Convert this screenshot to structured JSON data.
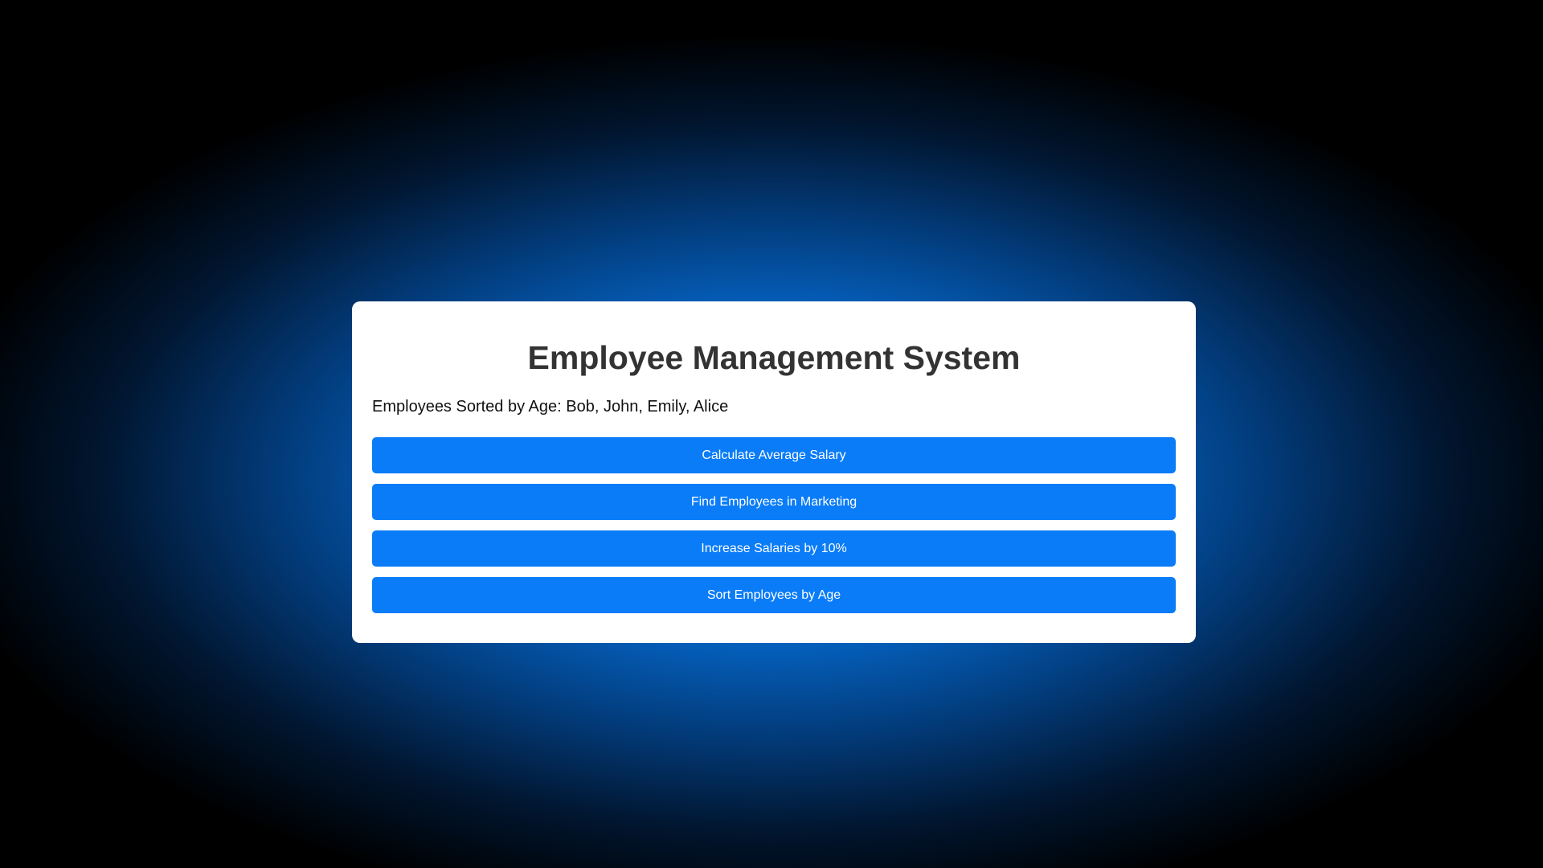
{
  "app": {
    "title": "Employee Management System",
    "status_text": "Employees Sorted by Age: Bob, John, Emily, Alice"
  },
  "actions": [
    {
      "label": "Calculate Average Salary"
    },
    {
      "label": "Find Employees in Marketing"
    },
    {
      "label": "Increase Salaries by 10%"
    },
    {
      "label": "Sort Employees by Age"
    }
  ],
  "colors": {
    "accent": "#0a7cf8",
    "card_background": "#ffffff",
    "title_text": "#333333",
    "page_glow": "#0a7cf0",
    "page_background": "#000000"
  }
}
